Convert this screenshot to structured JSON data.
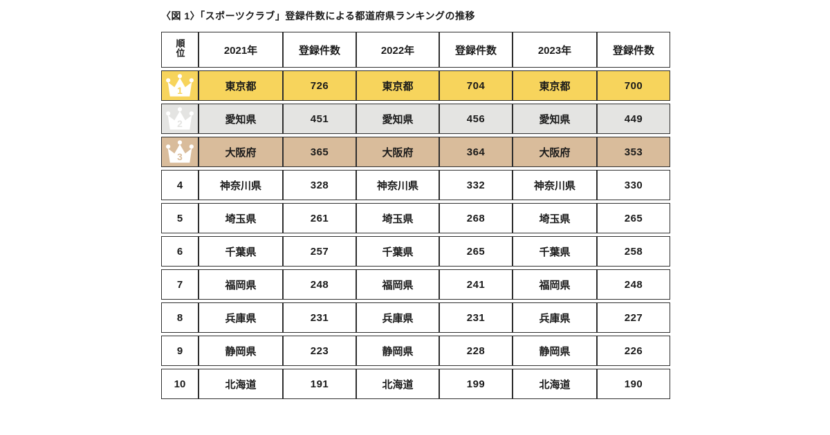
{
  "title": "〈図 1〉「スポーツクラブ」登録件数による都道府県ランキングの推移",
  "colors": {
    "gold": "#F7D45C",
    "silver": "#E4E4E2",
    "bronze": "#D9BC9B",
    "border": "#2E2E2E",
    "text": "#1A1A1A",
    "crown": "#FFFFFF",
    "background": "#FFFFFF"
  },
  "table": {
    "rank_header": "順位",
    "year_headers": [
      "2021年",
      "2022年",
      "2023年"
    ],
    "count_header": "登録件数",
    "rows": [
      {
        "rank": "1",
        "highlight": "#F7D45C",
        "crown": true,
        "cells": [
          {
            "name": "東京都",
            "count": "726"
          },
          {
            "name": "東京都",
            "count": "704"
          },
          {
            "name": "東京都",
            "count": "700"
          }
        ]
      },
      {
        "rank": "2",
        "highlight": "#E4E4E2",
        "crown": true,
        "cells": [
          {
            "name": "愛知県",
            "count": "451"
          },
          {
            "name": "愛知県",
            "count": "456"
          },
          {
            "name": "愛知県",
            "count": "449"
          }
        ]
      },
      {
        "rank": "3",
        "highlight": "#D9BC9B",
        "crown": true,
        "cells": [
          {
            "name": "大阪府",
            "count": "365"
          },
          {
            "name": "大阪府",
            "count": "364"
          },
          {
            "name": "大阪府",
            "count": "353"
          }
        ]
      },
      {
        "rank": "4",
        "highlight": null,
        "crown": false,
        "cells": [
          {
            "name": "神奈川県",
            "count": "328"
          },
          {
            "name": "神奈川県",
            "count": "332"
          },
          {
            "name": "神奈川県",
            "count": "330"
          }
        ]
      },
      {
        "rank": "5",
        "highlight": null,
        "crown": false,
        "cells": [
          {
            "name": "埼玉県",
            "count": "261"
          },
          {
            "name": "埼玉県",
            "count": "268"
          },
          {
            "name": "埼玉県",
            "count": "265"
          }
        ]
      },
      {
        "rank": "6",
        "highlight": null,
        "crown": false,
        "cells": [
          {
            "name": "千葉県",
            "count": "257"
          },
          {
            "name": "千葉県",
            "count": "265"
          },
          {
            "name": "千葉県",
            "count": "258"
          }
        ]
      },
      {
        "rank": "7",
        "highlight": null,
        "crown": false,
        "cells": [
          {
            "name": "福岡県",
            "count": "248"
          },
          {
            "name": "福岡県",
            "count": "241"
          },
          {
            "name": "福岡県",
            "count": "248"
          }
        ]
      },
      {
        "rank": "8",
        "highlight": null,
        "crown": false,
        "cells": [
          {
            "name": "兵庫県",
            "count": "231"
          },
          {
            "name": "兵庫県",
            "count": "231"
          },
          {
            "name": "兵庫県",
            "count": "227"
          }
        ]
      },
      {
        "rank": "9",
        "highlight": null,
        "crown": false,
        "cells": [
          {
            "name": "静岡県",
            "count": "223"
          },
          {
            "name": "静岡県",
            "count": "228"
          },
          {
            "name": "静岡県",
            "count": "226"
          }
        ]
      },
      {
        "rank": "10",
        "highlight": null,
        "crown": false,
        "cells": [
          {
            "name": "北海道",
            "count": "191"
          },
          {
            "name": "北海道",
            "count": "199"
          },
          {
            "name": "北海道",
            "count": "190"
          }
        ]
      }
    ]
  },
  "chart_data": {
    "type": "table",
    "title": "〈図 1〉「スポーツクラブ」登録件数による都道府県ランキングの推移",
    "columns": [
      "順位",
      "2021年",
      "登録件数",
      "2022年",
      "登録件数",
      "2023年",
      "登録件数"
    ],
    "rows": [
      [
        1,
        "東京都",
        726,
        "東京都",
        704,
        "東京都",
        700
      ],
      [
        2,
        "愛知県",
        451,
        "愛知県",
        456,
        "愛知県",
        449
      ],
      [
        3,
        "大阪府",
        365,
        "大阪府",
        364,
        "大阪府",
        353
      ],
      [
        4,
        "神奈川県",
        328,
        "神奈川県",
        332,
        "神奈川県",
        330
      ],
      [
        5,
        "埼玉県",
        261,
        "埼玉県",
        268,
        "埼玉県",
        265
      ],
      [
        6,
        "千葉県",
        257,
        "千葉県",
        265,
        "千葉県",
        258
      ],
      [
        7,
        "福岡県",
        248,
        "福岡県",
        241,
        "福岡県",
        248
      ],
      [
        8,
        "兵庫県",
        231,
        "兵庫県",
        231,
        "兵庫県",
        227
      ],
      [
        9,
        "静岡県",
        223,
        "静岡県",
        228,
        "静岡県",
        226
      ],
      [
        10,
        "北海道",
        191,
        "北海道",
        199,
        "北海道",
        190
      ]
    ],
    "highlight_rows": {
      "1": "gold",
      "2": "silver",
      "3": "bronze"
    },
    "legend_position": "none",
    "grid": true
  }
}
